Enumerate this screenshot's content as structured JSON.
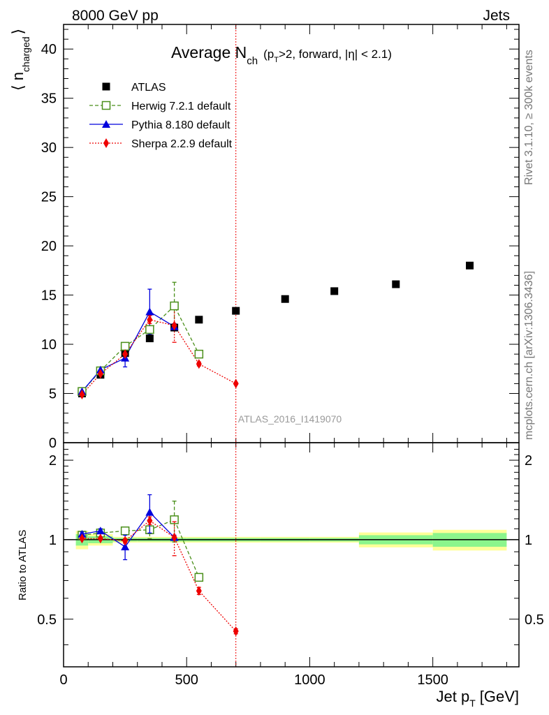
{
  "header": {
    "left": "8000 GeV pp",
    "right": "Jets"
  },
  "side_labels": {
    "rivet": "Rivet 3.1.10, ≥ 300k events",
    "mcplots": "mcplots.cern.ch [arXiv:1306.3436]"
  },
  "watermark": "ATLAS_2016_I1419070",
  "title": {
    "main": "Average N",
    "sub": "ch",
    "paren_pre": "(p",
    "paren_sub": "T",
    "paren_post": ">2, forward, |η| < 2.1)"
  },
  "axes": {
    "ylabel_main_left": "⟨ n",
    "ylabel_main_sub": "charged",
    "ylabel_main_right": "⟩",
    "ylabel_ratio": "Ratio to ATLAS",
    "xlabel_main": "Jet p",
    "xlabel_sub": "T",
    "xlabel_unit": "[GeV]"
  },
  "legend": [
    {
      "key": "atlas",
      "label": "ATLAS"
    },
    {
      "key": "herwig",
      "label": "Herwig 7.2.1 default"
    },
    {
      "key": "pythia",
      "label": "Pythia 8.180 default"
    },
    {
      "key": "sherpa",
      "label": "Sherpa 2.2.9 default"
    }
  ],
  "colors": {
    "atlas": "#000000",
    "herwig": "#4a8f1a",
    "pythia": "#0000dd",
    "sherpa": "#ee0000",
    "band_inner": "#8cf58c",
    "band_outer": "#ffff99"
  },
  "chart_data": {
    "type": "scatter",
    "xlim": [
      0,
      1850
    ],
    "ylim_main": [
      0,
      42.5
    ],
    "ylim_ratio": [
      0.33,
      2.33
    ],
    "x_ticks": [
      0,
      500,
      1000,
      1500
    ],
    "x_tick_labels": [
      "0",
      "500",
      "1000",
      "1500"
    ],
    "y_ticks_main": [
      0,
      5,
      10,
      15,
      20,
      25,
      30,
      35,
      40
    ],
    "y_tick_labels_main": [
      "0",
      "5",
      "10",
      "15",
      "20",
      "25",
      "30",
      "35",
      "40"
    ],
    "y_ticks_ratio": [
      0.5,
      1,
      2
    ],
    "y_tick_labels_ratio": [
      "0.5",
      "1",
      "2"
    ],
    "vertical_line_x": 700,
    "atlas": {
      "x": [
        75,
        150,
        250,
        350,
        450,
        550,
        700,
        900,
        1100,
        1350,
        1650
      ],
      "y": [
        5.0,
        6.9,
        9.1,
        10.6,
        11.7,
        12.5,
        13.4,
        14.6,
        15.4,
        16.1,
        18.0
      ],
      "bin_edges": [
        50,
        100,
        200,
        300,
        400,
        500,
        600,
        800,
        1000,
        1200,
        1500,
        1800
      ],
      "band_inner": [
        0.05,
        0.03,
        0.015,
        0.015,
        0.015,
        0.015,
        0.015,
        0.015,
        0.015,
        0.04,
        0.06
      ],
      "band_outer": [
        0.08,
        0.05,
        0.025,
        0.025,
        0.025,
        0.025,
        0.025,
        0.025,
        0.025,
        0.065,
        0.09
      ]
    },
    "series": [
      {
        "key": "herwig",
        "label": "Herwig 7.2.1 default",
        "x": [
          75,
          150,
          250,
          350,
          450,
          550
        ],
        "y": [
          5.2,
          7.3,
          9.8,
          11.5,
          13.9,
          9.0
        ],
        "err": [
          0.15,
          0.2,
          0.3,
          0.9,
          2.4,
          0.3
        ],
        "ratio": [
          1.04,
          1.06,
          1.08,
          1.09,
          1.19,
          0.72
        ],
        "ratio_err": [
          0.02,
          0.02,
          0.03,
          0.08,
          0.21,
          0.02
        ]
      },
      {
        "key": "pythia",
        "label": "Pythia 8.180 default",
        "x": [
          75,
          150,
          250,
          350,
          450
        ],
        "y": [
          5.2,
          7.4,
          8.6,
          13.3,
          11.8
        ],
        "err": [
          0.15,
          0.2,
          0.9,
          2.3,
          0.3
        ],
        "ratio": [
          1.05,
          1.08,
          0.94,
          1.27,
          1.02
        ],
        "ratio_err": [
          0.02,
          0.02,
          0.1,
          0.21,
          0.02
        ]
      },
      {
        "key": "sherpa",
        "label": "Sherpa 2.2.9 default",
        "x": [
          75,
          150,
          250,
          350,
          450,
          550,
          700
        ],
        "y": [
          4.9,
          7.0,
          9.0,
          12.5,
          11.9,
          8.0,
          6.0
        ],
        "err": [
          0.1,
          0.1,
          0.2,
          0.4,
          1.7,
          0.2,
          0.1
        ],
        "ratio": [
          1.01,
          1.01,
          0.99,
          1.18,
          1.02,
          0.64,
          0.45
        ],
        "ratio_err": [
          0.01,
          0.01,
          0.02,
          0.04,
          0.15,
          0.02,
          0.01
        ]
      }
    ]
  }
}
